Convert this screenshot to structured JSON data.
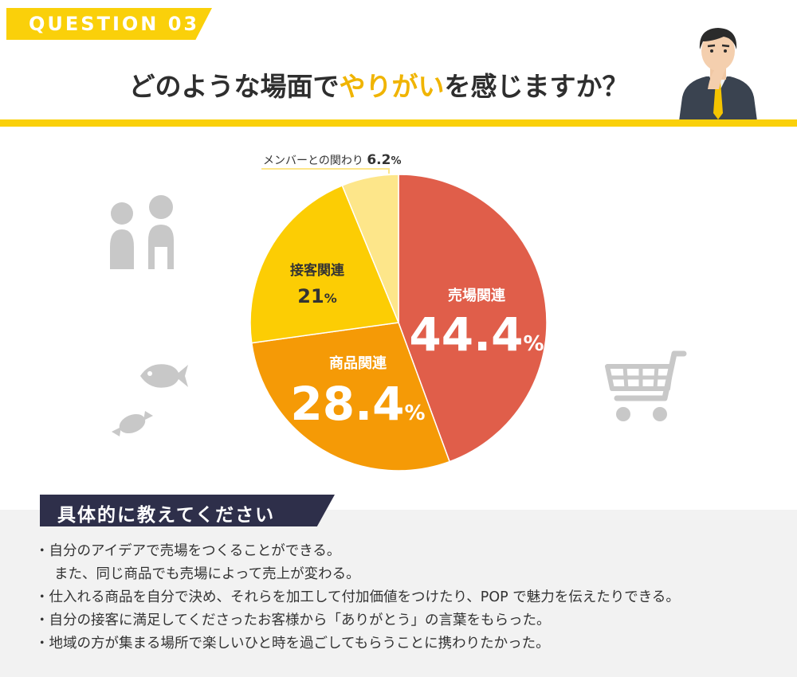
{
  "header": {
    "question_badge": "QUESTION 03",
    "title_before": "どのような場面で",
    "title_highlight": "やりがい",
    "title_after": "を感じますか？"
  },
  "colors": {
    "accent_yellow": "#fad00a",
    "highlight_text": "#f0b400",
    "navy": "#2e2f4a",
    "panel_bg": "#f2f2f2",
    "icon_gray": "#c8c8c8"
  },
  "chart_data": {
    "type": "pie",
    "start_angle": "top",
    "direction": "clockwise",
    "legend": "none",
    "slices": [
      {
        "label": "売場関連",
        "value": 44.4,
        "value_text": "44.4",
        "unit": "%",
        "color": "#e05e4a",
        "label_color": "#ffffff"
      },
      {
        "label": "商品関連",
        "value": 28.4,
        "value_text": "28.4",
        "unit": "%",
        "color": "#f59a06",
        "label_color": "#ffffff"
      },
      {
        "label": "接客関連",
        "value": 21,
        "value_text": "21",
        "unit": "%",
        "color": "#fccd04",
        "label_color": "#333333"
      },
      {
        "label": "メンバーとの関わり",
        "value": 6.2,
        "value_text": "6.2",
        "unit": "%",
        "color": "#fde68a",
        "label_color": "#333333"
      }
    ]
  },
  "decorations": {
    "icons": [
      "people-icon",
      "fish-icon",
      "candy-icon",
      "shopping-cart-icon",
      "businessman-illustration"
    ]
  },
  "details": {
    "heading": "具体的に教えてください",
    "bullet": "・",
    "items": [
      "自分のアイデアで売場をつくることができる。",
      "また、同じ商品でも売場によって売上が変わる。",
      "仕入れる商品を自分で決め、それらを加工して付加価値をつけたり、POP で魅力を伝えたりできる。",
      "自分の接客に満足してくださったお客様から「ありがとう」の言葉をもらった。",
      "地域の方が集まる場所で楽しいひと時を過ごしてもらうことに携わりたかった。"
    ]
  }
}
